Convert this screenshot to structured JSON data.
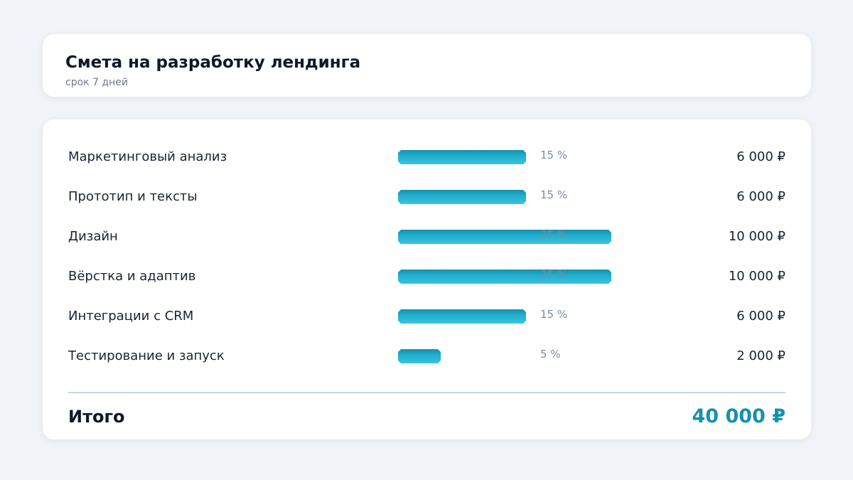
{
  "header": {
    "title": "Смета на разработку лендинга",
    "subtitle": "срок 7 дней"
  },
  "accent_color": "#1591ad",
  "items": [
    {
      "name": "Маркетинговый анализ",
      "percent": 15,
      "percent_label": "15 %",
      "amount": "6 000 ₽"
    },
    {
      "name": "Прототип и тексты",
      "percent": 15,
      "percent_label": "15 %",
      "amount": "6 000 ₽"
    },
    {
      "name": "Дизайн",
      "percent": 25,
      "percent_label": "25 %",
      "amount": "10 000 ₽"
    },
    {
      "name": "Вёрстка и адаптив",
      "percent": 25,
      "percent_label": "25 %",
      "amount": "10 000 ₽"
    },
    {
      "name": "Интеграции с CRM",
      "percent": 15,
      "percent_label": "15 %",
      "amount": "6 000 ₽"
    },
    {
      "name": "Тестирование и запуск",
      "percent": 5,
      "percent_label": "5 %",
      "amount": "2 000 ₽"
    }
  ],
  "total": {
    "label": "Итого",
    "value": "40 000 ₽"
  }
}
